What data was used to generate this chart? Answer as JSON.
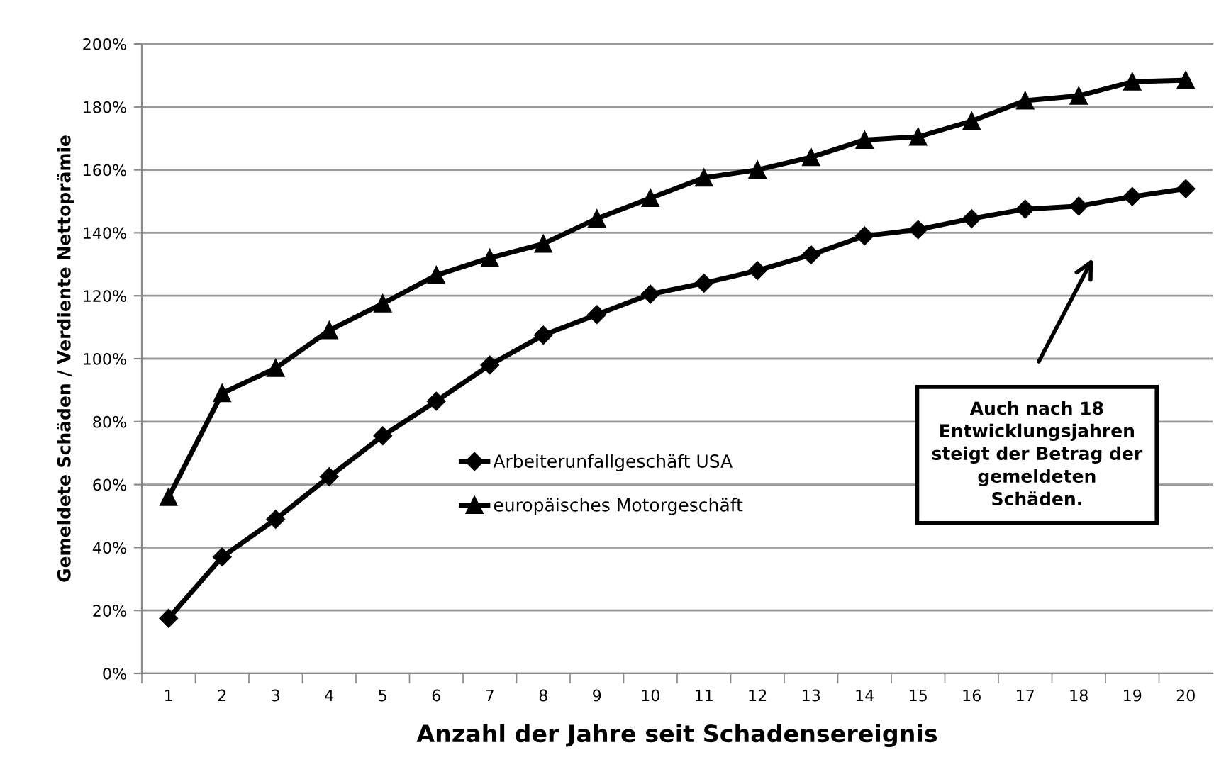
{
  "chart_data": {
    "type": "line",
    "xlabel": "Anzahl der Jahre seit Schadensereignis",
    "ylabel": "Gemeldete Schäden / Verdiente Nettoprämie",
    "categories": [
      "1",
      "2",
      "3",
      "4",
      "5",
      "6",
      "7",
      "8",
      "9",
      "10",
      "11",
      "12",
      "13",
      "14",
      "15",
      "16",
      "17",
      "18",
      "19",
      "20"
    ],
    "series": [
      {
        "name": "Arbeiterunfallgeschäft USA",
        "color": "#000000",
        "marker": "diamond",
        "values": [
          17.5,
          37,
          49,
          62.5,
          75.5,
          86.5,
          98,
          107.5,
          114,
          120.5,
          124,
          128,
          133,
          139,
          141,
          144.5,
          147.5,
          148.5,
          151.5,
          154
        ]
      },
      {
        "name": "europäisches Motorgeschäft",
        "color": "#000000",
        "marker": "triangle",
        "values": [
          56,
          89,
          97,
          109,
          117.5,
          126.5,
          132,
          136.5,
          144.5,
          151,
          157.5,
          160,
          164,
          169.5,
          170.5,
          175.5,
          182,
          183.5,
          188,
          188.5
        ]
      }
    ],
    "ylim": [
      0,
      200
    ],
    "yticks": [
      {
        "value": 0,
        "label": "0%"
      },
      {
        "value": 20,
        "label": "20%"
      },
      {
        "value": 40,
        "label": "40%"
      },
      {
        "value": 60,
        "label": "60%"
      },
      {
        "value": 80,
        "label": "80%"
      },
      {
        "value": 100,
        "label": "100%"
      },
      {
        "value": 120,
        "label": "120%"
      },
      {
        "value": 140,
        "label": "140%"
      },
      {
        "value": 160,
        "label": "160%"
      },
      {
        "value": 180,
        "label": "180%"
      },
      {
        "value": 200,
        "label": "200%"
      }
    ],
    "grid": "y",
    "legend": "center left",
    "line_style": "solid",
    "annotations": [
      "Auch nach 18\nEntwicklungsjahren\nsteigt der Betrag der\ngemeldeten\nSchäden."
    ]
  }
}
